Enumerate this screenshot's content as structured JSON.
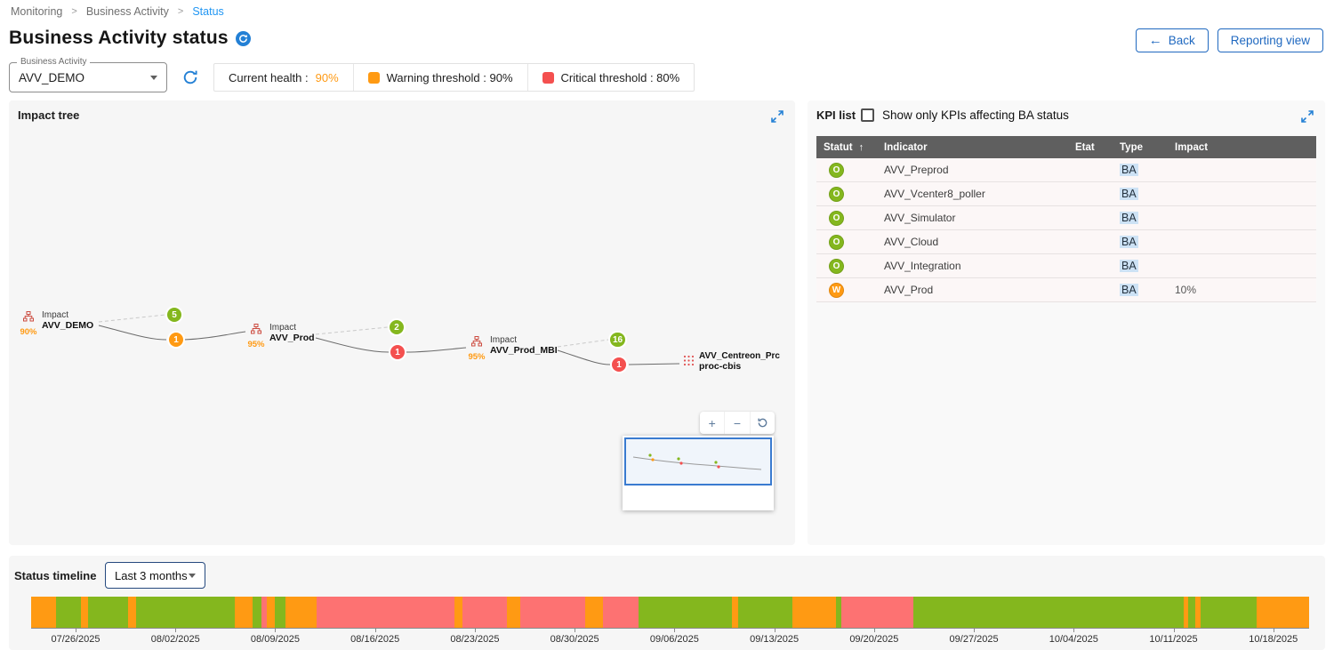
{
  "breadcrumb": {
    "separator": ">",
    "items": [
      "Monitoring",
      "Business Activity",
      "Status"
    ]
  },
  "header": {
    "title": "Business Activity status",
    "back_arrow": "←",
    "back_button": "Back",
    "reporting_button": "Reporting view"
  },
  "controls": {
    "ba_select_label": "Business Activity",
    "ba_select_value": "AVV_DEMO",
    "legend": {
      "current_health_label": "Current health :",
      "current_health_value": "90%",
      "warning_label": "Warning threshold : 90%",
      "critical_label": "Critical threshold : 80%"
    }
  },
  "impact_tree": {
    "title": "Impact tree",
    "zoom_in": "+",
    "zoom_out": "−",
    "nodes": [
      {
        "health": "90%",
        "line1": "Impact",
        "line2": "AVV_DEMO",
        "ok_count": "5",
        "alert_count": "1",
        "alert_status": "warning"
      },
      {
        "health": "95%",
        "line1": "Impact",
        "line2": "AVV_Prod",
        "ok_count": "2",
        "alert_count": "1",
        "alert_status": "critical"
      },
      {
        "health": "95%",
        "line1": "Impact",
        "line2": "AVV_Prod_MBI",
        "ok_count": "16",
        "alert_count": "1",
        "alert_status": "critical"
      },
      {
        "line1": "AVV_Centreon_Prc",
        "line2": "proc-cbis"
      }
    ]
  },
  "kpi_list": {
    "title": "KPI list",
    "filter_label": "Show only KPIs affecting BA status",
    "sort_arrow": "↑",
    "columns": [
      "Statut",
      "Indicator",
      "État",
      "Type",
      "Impact"
    ],
    "rows": [
      {
        "status_letter": "O",
        "status": "ok",
        "indicator": "AVV_Preprod",
        "etat": "",
        "type": "BA",
        "impact": ""
      },
      {
        "status_letter": "O",
        "status": "ok",
        "indicator": "AVV_Vcenter8_poller",
        "etat": "",
        "type": "BA",
        "impact": ""
      },
      {
        "status_letter": "O",
        "status": "ok",
        "indicator": "AVV_Simulator",
        "etat": "",
        "type": "BA",
        "impact": ""
      },
      {
        "status_letter": "O",
        "status": "ok",
        "indicator": "AVV_Cloud",
        "etat": "",
        "type": "BA",
        "impact": ""
      },
      {
        "status_letter": "O",
        "status": "ok",
        "indicator": "AVV_Integration",
        "etat": "",
        "type": "BA",
        "impact": ""
      },
      {
        "status_letter": "W",
        "status": "warning",
        "indicator": "AVV_Prod",
        "etat": "",
        "type": "BA",
        "impact": "10%"
      }
    ]
  },
  "timeline": {
    "title": "Status timeline",
    "range_value": "Last 3 months",
    "dates": [
      "07/26/2025",
      "08/02/2025",
      "08/09/2025",
      "08/16/2025",
      "08/23/2025",
      "08/30/2025",
      "09/06/2025",
      "09/13/2025",
      "09/20/2025",
      "09/27/2025",
      "10/04/2025",
      "10/11/2025",
      "10/18/2025"
    ],
    "segments": [
      {
        "status": "warning",
        "grow": 28
      },
      {
        "status": "ok",
        "grow": 27
      },
      {
        "status": "warning",
        "grow": 8
      },
      {
        "status": "ok",
        "grow": 44
      },
      {
        "status": "warning",
        "grow": 9
      },
      {
        "status": "ok",
        "grow": 110
      },
      {
        "status": "warning",
        "grow": 20
      },
      {
        "status": "ok",
        "grow": 9
      },
      {
        "status": "critical",
        "grow": 6
      },
      {
        "status": "warning",
        "grow": 9
      },
      {
        "status": "ok",
        "grow": 12
      },
      {
        "status": "warning",
        "grow": 35
      },
      {
        "status": "critical",
        "grow": 152
      },
      {
        "status": "warning",
        "grow": 9
      },
      {
        "status": "critical",
        "grow": 50
      },
      {
        "status": "warning",
        "grow": 14
      },
      {
        "status": "critical",
        "grow": 72
      },
      {
        "status": "warning",
        "grow": 20
      },
      {
        "status": "critical",
        "grow": 40
      },
      {
        "status": "ok",
        "grow": 103
      },
      {
        "status": "warning",
        "grow": 7
      },
      {
        "status": "ok",
        "grow": 60
      },
      {
        "status": "warning",
        "grow": 48
      },
      {
        "status": "ok",
        "grow": 6
      },
      {
        "status": "critical",
        "grow": 80
      },
      {
        "status": "ok",
        "grow": 300
      },
      {
        "status": "warning",
        "grow": 5
      },
      {
        "status": "ok",
        "grow": 8
      },
      {
        "status": "warning",
        "grow": 6
      },
      {
        "status": "ok",
        "grow": 62
      },
      {
        "status": "warning",
        "grow": 58
      }
    ]
  },
  "colors": {
    "ok": "#84b71e",
    "warning": "#ff9a13",
    "critical": "#f4504f",
    "timeline_critical": "#fd7272",
    "accent": "#2069c0",
    "link": "#2196f3",
    "icon_blue": "#2380d5",
    "table_header_bg": "#5f5f5f",
    "type_chip_bg": "#cde2f5"
  }
}
